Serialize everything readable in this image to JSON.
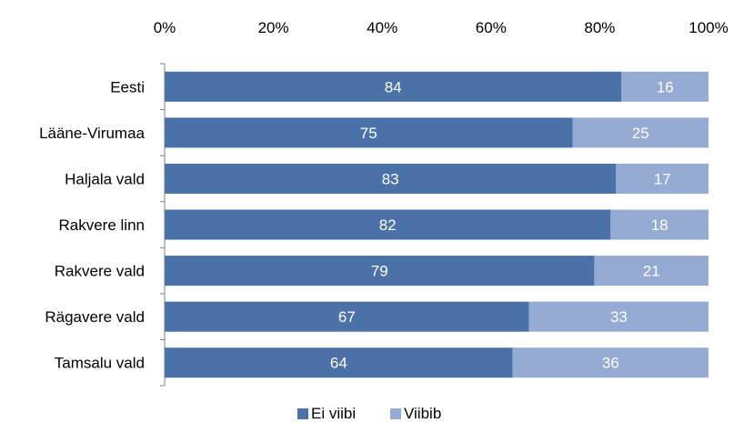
{
  "chart_data": {
    "type": "bar",
    "orientation": "horizontal",
    "stacked": "percent",
    "categories": [
      "Eesti",
      "Lääne-Virumaa",
      "Haljala vald",
      "Rakvere linn",
      "Rakvere vald",
      "Rägavere vald",
      "Tamsalu vald"
    ],
    "series": [
      {
        "name": "Ei viibi",
        "values": [
          84,
          75,
          83,
          82,
          79,
          67,
          64
        ],
        "color": "#4a72a8"
      },
      {
        "name": "Viibib",
        "values": [
          16,
          25,
          17,
          18,
          21,
          33,
          36
        ],
        "color": "#95abd3"
      }
    ],
    "x_ticks": [
      "0%",
      "20%",
      "40%",
      "60%",
      "80%",
      "100%"
    ],
    "xlim": [
      0,
      100
    ],
    "axis_position": "top",
    "legend_position": "bottom",
    "grid": false,
    "label_color": "#ffffff"
  }
}
